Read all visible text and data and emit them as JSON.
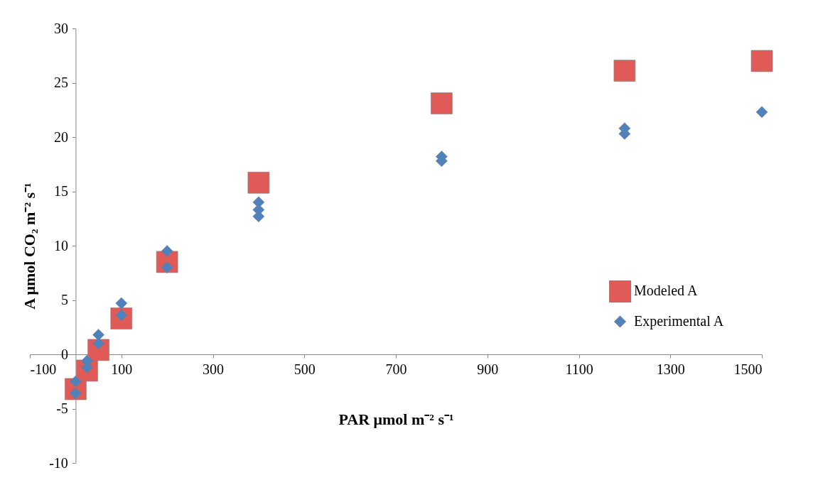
{
  "chart_data": {
    "type": "scatter",
    "xlabel": "PAR  μmol m⁻² s⁻¹",
    "ylabel": "A μmol CO₂ m⁻² s⁻¹",
    "xlim": [
      -100,
      1500
    ],
    "xticks": [
      -100,
      100,
      300,
      500,
      700,
      900,
      1100,
      1300,
      1500
    ],
    "ylim": [
      -10,
      30
    ],
    "yticks": [
      -10,
      -5,
      0,
      5,
      10,
      15,
      20,
      25,
      30
    ],
    "grid": false,
    "legend": "right",
    "series": [
      {
        "name": "Modeled A",
        "color": "#e05a57",
        "marker": "square",
        "x": [
          0,
          25,
          50,
          100,
          200,
          400,
          800,
          1200,
          1500
        ],
        "values": [
          -3.2,
          -1.5,
          0.4,
          3.3,
          8.5,
          15.8,
          23.1,
          26.1,
          27.0
        ]
      },
      {
        "name": "Experimental A",
        "color": "#4f81bd",
        "marker": "diamond",
        "x": [
          0,
          0,
          25,
          25,
          50,
          50,
          100,
          100,
          200,
          200,
          400,
          400,
          400,
          800,
          800,
          1200,
          1200,
          1500
        ],
        "values": [
          -3.6,
          -2.5,
          -1.2,
          -0.6,
          1.0,
          1.8,
          3.6,
          4.7,
          8.0,
          9.5,
          12.7,
          13.3,
          14.0,
          17.8,
          18.2,
          20.3,
          20.8,
          22.3
        ]
      }
    ]
  }
}
